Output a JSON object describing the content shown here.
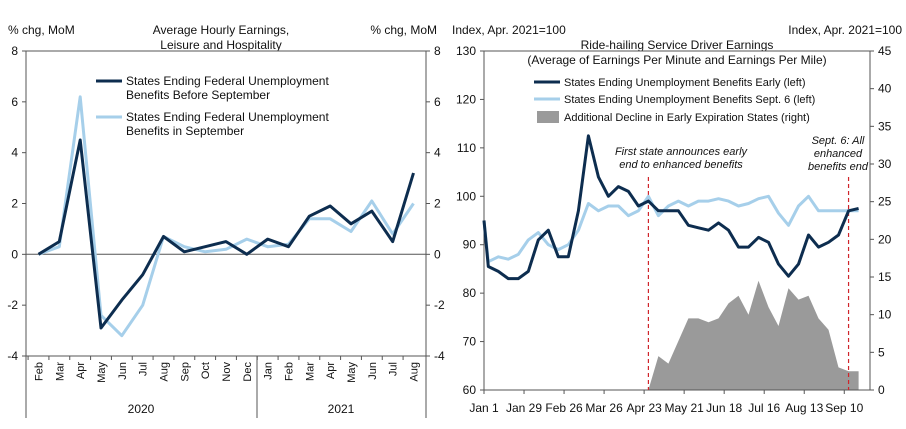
{
  "chart_data": [
    {
      "type": "line",
      "title": "Average Hourly Earnings,",
      "title2": "Leisure and Hospitality",
      "ylabel_left": "% chg, MoM",
      "ylabel_right": "% chg, MoM",
      "ylim": [
        -4,
        8
      ],
      "yticks": [
        "-4",
        "-2",
        "0",
        "2",
        "4",
        "6",
        "8"
      ],
      "categories": [
        "Feb",
        "Mar",
        "Apr",
        "May",
        "Jun",
        "Jul",
        "Aug",
        "Sep",
        "Oct",
        "Nov",
        "Dec",
        "Jan",
        "Feb",
        "Mar",
        "Apr",
        "May",
        "Jun",
        "Jul",
        "Aug"
      ],
      "years": [
        "2020",
        "2021"
      ],
      "legend": {
        "s1_line1": "States Ending Federal Unemployment",
        "s1_line2": "Benefits Before September",
        "s2_line1": "States Ending Federal Unemployment",
        "s2_line2": "Benefits in September"
      },
      "series": [
        {
          "name": "States Ending Federal Unemployment Benefits Before September",
          "color": "#0d2d4f",
          "values": [
            0.0,
            0.5,
            4.5,
            -2.9,
            -1.8,
            -0.8,
            0.7,
            0.1,
            0.3,
            0.5,
            0.0,
            0.6,
            0.3,
            1.5,
            1.9,
            1.2,
            1.7,
            0.5,
            3.2
          ]
        },
        {
          "name": "States Ending Federal Unemployment Benefits in September",
          "color": "#a6cfea",
          "values": [
            0.0,
            0.3,
            6.2,
            -2.4,
            -3.2,
            -2.0,
            0.7,
            0.3,
            0.1,
            0.2,
            0.6,
            0.3,
            0.4,
            1.4,
            1.4,
            0.9,
            2.1,
            0.8,
            2.0
          ]
        }
      ]
    },
    {
      "type": "line",
      "title": "Ride-hailing Service Driver Earnings",
      "title2": "(Average of Earnings Per Minute and Earnings Per Mile)",
      "ylabel_left": "Index, Apr. 2021=100",
      "ylabel_right": "Index, Apr. 2021=100",
      "ylim_left": [
        60,
        130
      ],
      "ylim_right": [
        0,
        45
      ],
      "yticks_left": [
        "60",
        "70",
        "80",
        "90",
        "100",
        "110",
        "120",
        "130"
      ],
      "yticks_right": [
        "0",
        "5",
        "10",
        "15",
        "20",
        "25",
        "30",
        "35",
        "40",
        "45"
      ],
      "xticks": [
        "Jan 1",
        "Jan 29",
        "Feb 26",
        "Mar 26",
        "Apr 23",
        "May 21",
        "Jun 18",
        "Jul 16",
        "Aug 13",
        "Sep 10"
      ],
      "legend": {
        "early": "States Ending Unemployment Benefits Early (left)",
        "sept": "States Ending Unemployment Benefits Sept. 6 (left)",
        "decline": "Additional Decline in Early Expiration States (right)"
      },
      "annotations": {
        "first_line1": "First state announces early",
        "first_line2": "end to enhanced benefits",
        "sept_line1": "Sept. 6: All",
        "sept_line2": "enhanced",
        "sept_line3": "benefits end"
      },
      "x_days": [
        0,
        3,
        10,
        17,
        24,
        31,
        38,
        45,
        52,
        59,
        66,
        73,
        80,
        87,
        94,
        101,
        108,
        115,
        122,
        129,
        136,
        143,
        150,
        157,
        164,
        171,
        178,
        185,
        192,
        199,
        206,
        213,
        220,
        227,
        234,
        241,
        248,
        255,
        262
      ],
      "series": [
        {
          "name": "States Ending Unemployment Benefits Early (left)",
          "color": "#0d2d4f",
          "values": [
            95,
            85.5,
            84.5,
            83,
            83,
            84.5,
            91,
            93,
            87.5,
            87.5,
            97,
            112.5,
            104,
            100,
            102,
            101,
            98,
            99,
            97,
            97,
            97,
            94,
            93.5,
            93,
            94.5,
            93,
            89.5,
            89.5,
            91.5,
            90.5,
            86,
            83.5,
            86,
            92,
            89.5,
            90.5,
            92,
            97,
            97.5
          ]
        },
        {
          "name": "States Ending Unemployment Benefits Sept. 6 (left)",
          "color": "#a6cfea",
          "values": [
            95,
            86.5,
            87.5,
            87,
            88,
            91,
            92.5,
            90,
            89,
            90,
            93,
            98.5,
            97,
            98,
            98,
            96,
            97,
            100,
            96,
            98,
            99,
            98,
            99,
            99,
            99.5,
            99,
            98,
            98.5,
            99.5,
            100,
            96.5,
            94,
            98,
            100,
            97,
            97,
            97,
            97,
            97
          ]
        }
      ],
      "decline": {
        "x_days": [
          115,
          122,
          129,
          136,
          143,
          150,
          157,
          164,
          171,
          178,
          185,
          192,
          199,
          206,
          213,
          220,
          227,
          234,
          241,
          248,
          255,
          262
        ],
        "values": [
          0,
          4.5,
          3.5,
          6.5,
          9.5,
          9.5,
          9,
          9.5,
          11.5,
          12.5,
          10,
          14.5,
          11,
          8.5,
          13.5,
          12,
          12.5,
          9.5,
          8,
          3,
          2.5,
          2.5
        ]
      },
      "vlines_days": [
        115,
        255
      ]
    }
  ]
}
